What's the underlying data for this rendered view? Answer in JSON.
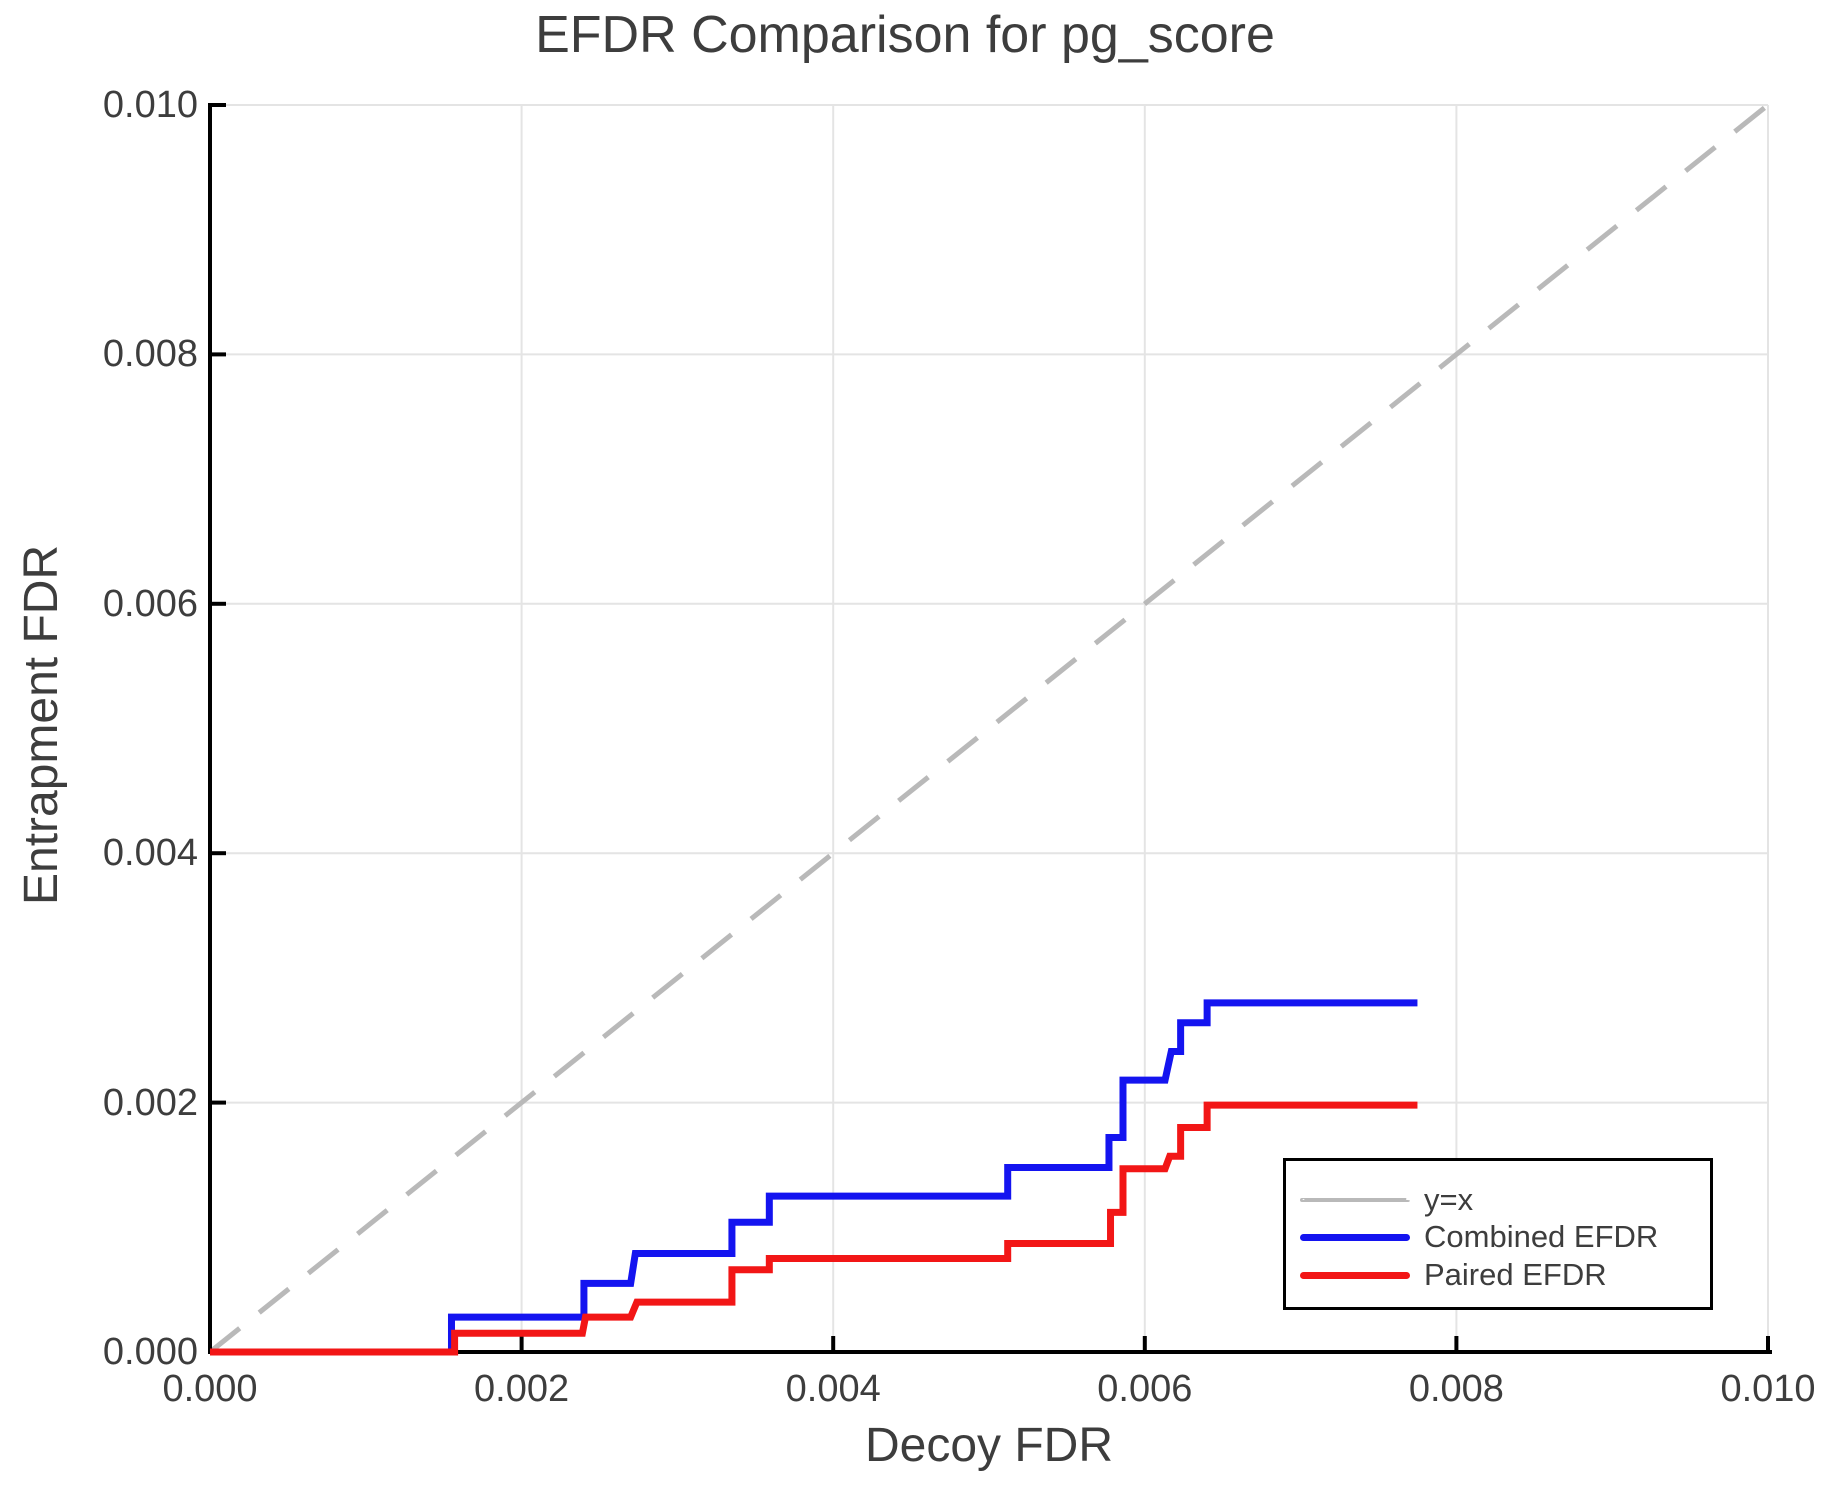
{
  "chart_data": {
    "type": "line",
    "title": "EFDR Comparison for pg_score",
    "xlabel": "Decoy FDR",
    "ylabel": "Entrapment FDR",
    "xlim": [
      0.0,
      0.01
    ],
    "ylim": [
      0.0,
      0.01
    ],
    "x_ticks": [
      0.0,
      0.002,
      0.004,
      0.006,
      0.008,
      0.01
    ],
    "x_tick_labels": [
      "0.000",
      "0.002",
      "0.004",
      "0.006",
      "0.008",
      "0.010"
    ],
    "y_ticks": [
      0.0,
      0.002,
      0.004,
      0.006,
      0.008,
      0.01
    ],
    "y_tick_labels": [
      "0.000",
      "0.002",
      "0.004",
      "0.006",
      "0.008",
      "0.010"
    ],
    "grid": true,
    "legend_position": "bottom-right",
    "colors": {
      "grid": "#e4e4e4",
      "axis": "#000000",
      "text": "#3d3d3d",
      "reference_line": "#b9b9b9",
      "combined": "#1414f0",
      "paired": "#f21616"
    },
    "series": [
      {
        "name": "y=x",
        "style": "dashed",
        "color": "#b9b9b9",
        "points": [
          [
            0.0,
            0.0
          ],
          [
            0.01,
            0.01
          ]
        ]
      },
      {
        "name": "Combined EFDR",
        "style": "solid",
        "color": "#1414f0",
        "points": [
          [
            0.0,
            0.0
          ],
          [
            0.00155,
            0.0
          ],
          [
            0.00155,
            0.00028
          ],
          [
            0.0024,
            0.00028
          ],
          [
            0.0024,
            0.00055
          ],
          [
            0.0027,
            0.00055
          ],
          [
            0.00273,
            0.00079
          ],
          [
            0.00335,
            0.00079
          ],
          [
            0.00335,
            0.00104
          ],
          [
            0.00359,
            0.00104
          ],
          [
            0.00359,
            0.00125
          ],
          [
            0.00512,
            0.00125
          ],
          [
            0.00512,
            0.00148
          ],
          [
            0.00577,
            0.00148
          ],
          [
            0.00577,
            0.00172
          ],
          [
            0.00586,
            0.00172
          ],
          [
            0.00586,
            0.00218
          ],
          [
            0.00613,
            0.00218
          ],
          [
            0.00617,
            0.00241
          ],
          [
            0.00623,
            0.00241
          ],
          [
            0.00623,
            0.00264
          ],
          [
            0.0064,
            0.00264
          ],
          [
            0.0064,
            0.0028
          ],
          [
            0.00775,
            0.0028
          ]
        ]
      },
      {
        "name": "Paired EFDR",
        "style": "solid",
        "color": "#f21616",
        "points": [
          [
            0.0,
            0.0
          ],
          [
            0.00157,
            0.0
          ],
          [
            0.00157,
            0.00015
          ],
          [
            0.00239,
            0.00015
          ],
          [
            0.00241,
            0.00028
          ],
          [
            0.0027,
            0.00028
          ],
          [
            0.00274,
            0.0004
          ],
          [
            0.00335,
            0.0004
          ],
          [
            0.00335,
            0.00066
          ],
          [
            0.00359,
            0.00066
          ],
          [
            0.00359,
            0.00075
          ],
          [
            0.00512,
            0.00075
          ],
          [
            0.00512,
            0.00087
          ],
          [
            0.00578,
            0.00087
          ],
          [
            0.00578,
            0.00112
          ],
          [
            0.00586,
            0.00112
          ],
          [
            0.00586,
            0.00147
          ],
          [
            0.00613,
            0.00147
          ],
          [
            0.00616,
            0.00157
          ],
          [
            0.00623,
            0.00157
          ],
          [
            0.00623,
            0.0018
          ],
          [
            0.0064,
            0.0018
          ],
          [
            0.0064,
            0.00198
          ],
          [
            0.00775,
            0.00198
          ]
        ]
      }
    ]
  }
}
